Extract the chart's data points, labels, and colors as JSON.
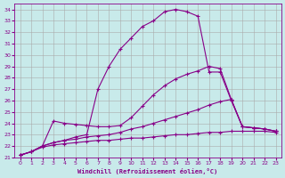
{
  "background_color": "#c8eaea",
  "grid_color": "#aaaaaa",
  "line_color": "#880088",
  "xlabel": "Windchill (Refroidissement éolien,°C)",
  "xlim": [
    -0.5,
    23.5
  ],
  "ylim": [
    21,
    34.5
  ],
  "xticks": [
    0,
    1,
    2,
    3,
    4,
    5,
    6,
    7,
    8,
    9,
    10,
    11,
    12,
    13,
    14,
    15,
    16,
    17,
    18,
    19,
    20,
    21,
    22,
    23
  ],
  "yticks": [
    21,
    22,
    23,
    24,
    25,
    26,
    27,
    28,
    29,
    30,
    31,
    32,
    33,
    34
  ],
  "series": [
    {
      "x": [
        0,
        1,
        2,
        3,
        4,
        5,
        6,
        7,
        8,
        9,
        10,
        11,
        12,
        13,
        14,
        15,
        16,
        17,
        18,
        19,
        20,
        21,
        22,
        23
      ],
      "y": [
        21.2,
        21.5,
        22.0,
        22.3,
        22.5,
        22.8,
        23.0,
        27.0,
        29.0,
        30.5,
        31.5,
        32.5,
        33.0,
        33.8,
        34.0,
        33.8,
        33.4,
        28.5,
        28.5,
        26.0,
        23.7,
        23.6,
        23.5,
        23.3
      ]
    },
    {
      "x": [
        0,
        1,
        2,
        3,
        4,
        5,
        6,
        7,
        8,
        9,
        10,
        11,
        12,
        13,
        14,
        15,
        16,
        17,
        18,
        19,
        20,
        21,
        22,
        23
      ],
      "y": [
        21.2,
        21.5,
        22.0,
        24.2,
        24.0,
        23.9,
        23.8,
        23.7,
        23.7,
        23.8,
        24.5,
        25.5,
        26.5,
        27.3,
        27.9,
        28.3,
        28.6,
        29.0,
        28.8,
        26.1,
        23.7,
        23.6,
        23.5,
        23.3
      ]
    },
    {
      "x": [
        0,
        1,
        2,
        3,
        4,
        5,
        6,
        7,
        8,
        9,
        10,
        11,
        12,
        13,
        14,
        15,
        16,
        17,
        18,
        19,
        20,
        21,
        22,
        23
      ],
      "y": [
        21.2,
        21.5,
        22.0,
        22.3,
        22.5,
        22.6,
        22.8,
        22.9,
        23.0,
        23.2,
        23.5,
        23.7,
        24.0,
        24.3,
        24.6,
        24.9,
        25.2,
        25.6,
        25.9,
        26.1,
        23.7,
        23.6,
        23.5,
        23.3
      ]
    },
    {
      "x": [
        0,
        1,
        2,
        3,
        4,
        5,
        6,
        7,
        8,
        9,
        10,
        11,
        12,
        13,
        14,
        15,
        16,
        17,
        18,
        19,
        20,
        21,
        22,
        23
      ],
      "y": [
        21.2,
        21.5,
        21.9,
        22.1,
        22.2,
        22.3,
        22.4,
        22.5,
        22.5,
        22.6,
        22.7,
        22.7,
        22.8,
        22.9,
        23.0,
        23.0,
        23.1,
        23.2,
        23.2,
        23.3,
        23.3,
        23.3,
        23.3,
        23.2
      ]
    }
  ]
}
